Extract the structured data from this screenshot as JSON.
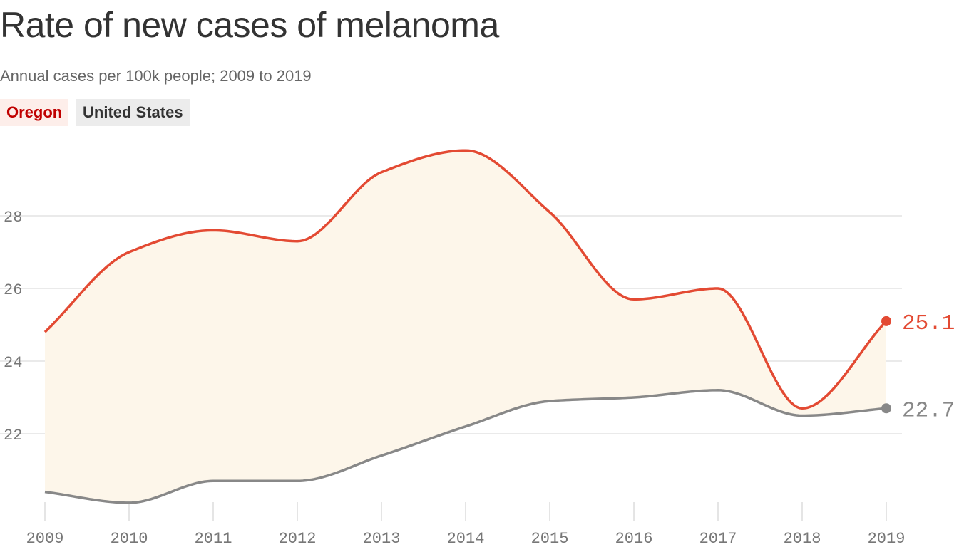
{
  "chart_data": {
    "type": "line",
    "title": "Rate of new cases of melanoma",
    "subtitle": "Annual cases per 100k people; 2009 to 2019",
    "x": [
      2009,
      2010,
      2011,
      2012,
      2013,
      2014,
      2015,
      2016,
      2017,
      2018,
      2019
    ],
    "x_tick_labels": [
      "2009",
      "2010",
      "2011",
      "2012",
      "2013",
      "2014",
      "2015",
      "2016",
      "2017",
      "2018",
      "2019"
    ],
    "y_ticks": [
      22,
      24,
      26,
      28
    ],
    "y_tick_labels": [
      "22",
      "24",
      "26",
      "28"
    ],
    "ylim": [
      20.0,
      30.0
    ],
    "grid": true,
    "legend_placement": "top-left",
    "shaded_area_between_series": true,
    "series": [
      {
        "name": "Oregon",
        "color": "#e34a33",
        "label_bg": "#fdeeea",
        "label_color": "#c00000",
        "values": [
          24.8,
          27.0,
          27.6,
          27.3,
          29.2,
          29.8,
          28.1,
          25.7,
          26.0,
          22.7,
          25.1
        ],
        "end_label": "25.1"
      },
      {
        "name": "United States",
        "color": "#888888",
        "label_bg": "#ececec",
        "label_color": "#333333",
        "values": [
          20.4,
          20.1,
          20.7,
          20.7,
          21.4,
          22.2,
          22.9,
          23.0,
          23.2,
          22.5,
          22.7
        ],
        "end_label": "22.7"
      }
    ],
    "area_color": "#fdf6ea"
  }
}
